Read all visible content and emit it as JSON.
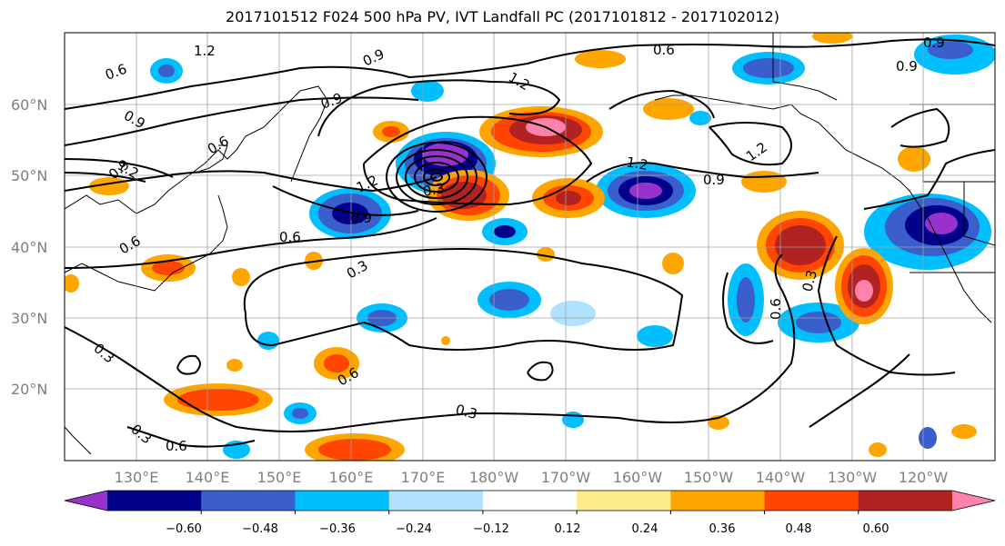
{
  "title": "2017101512 F024 500 hPa PV, IVT Landfall PC (2017101812 - 2017102012)",
  "latitude_labels": [
    "60°N",
    "50°N",
    "40°N",
    "30°N",
    "20°N"
  ],
  "longitude_labels": [
    "130°E",
    "140°E",
    "150°E",
    "160°E",
    "170°E",
    "180°W",
    "170°W",
    "160°W",
    "150°W",
    "140°W",
    "130°W",
    "120°W"
  ],
  "contour_labels": [
    "1.2",
    "0.6",
    "0.9",
    "1.2",
    "0.9",
    "0.6",
    "0.9",
    "0.9",
    "1.2",
    "0.9",
    "0.9",
    "1.2",
    "0.9",
    "0.6",
    "0.6",
    "0.3",
    "0.3",
    "0.6",
    "0.3",
    "0.3",
    "0.6",
    "0.3",
    "0.6",
    "0.9",
    "1.2",
    "1.2",
    "0.3",
    "0.6"
  ],
  "colorbar": {
    "ticks": [
      "−0.60",
      "−0.48",
      "−0.36",
      "−0.24",
      "−0.12",
      "0.12",
      "0.24",
      "0.36",
      "0.48",
      "0.60"
    ],
    "colors": [
      "#9932cc",
      "#00008b",
      "#3a5fcd",
      "#00bfff",
      "#b0e2ff",
      "#ffffff",
      "#ffec8b",
      "#ffa500",
      "#ff4500",
      "#b22222",
      "#ff82ab"
    ]
  }
}
